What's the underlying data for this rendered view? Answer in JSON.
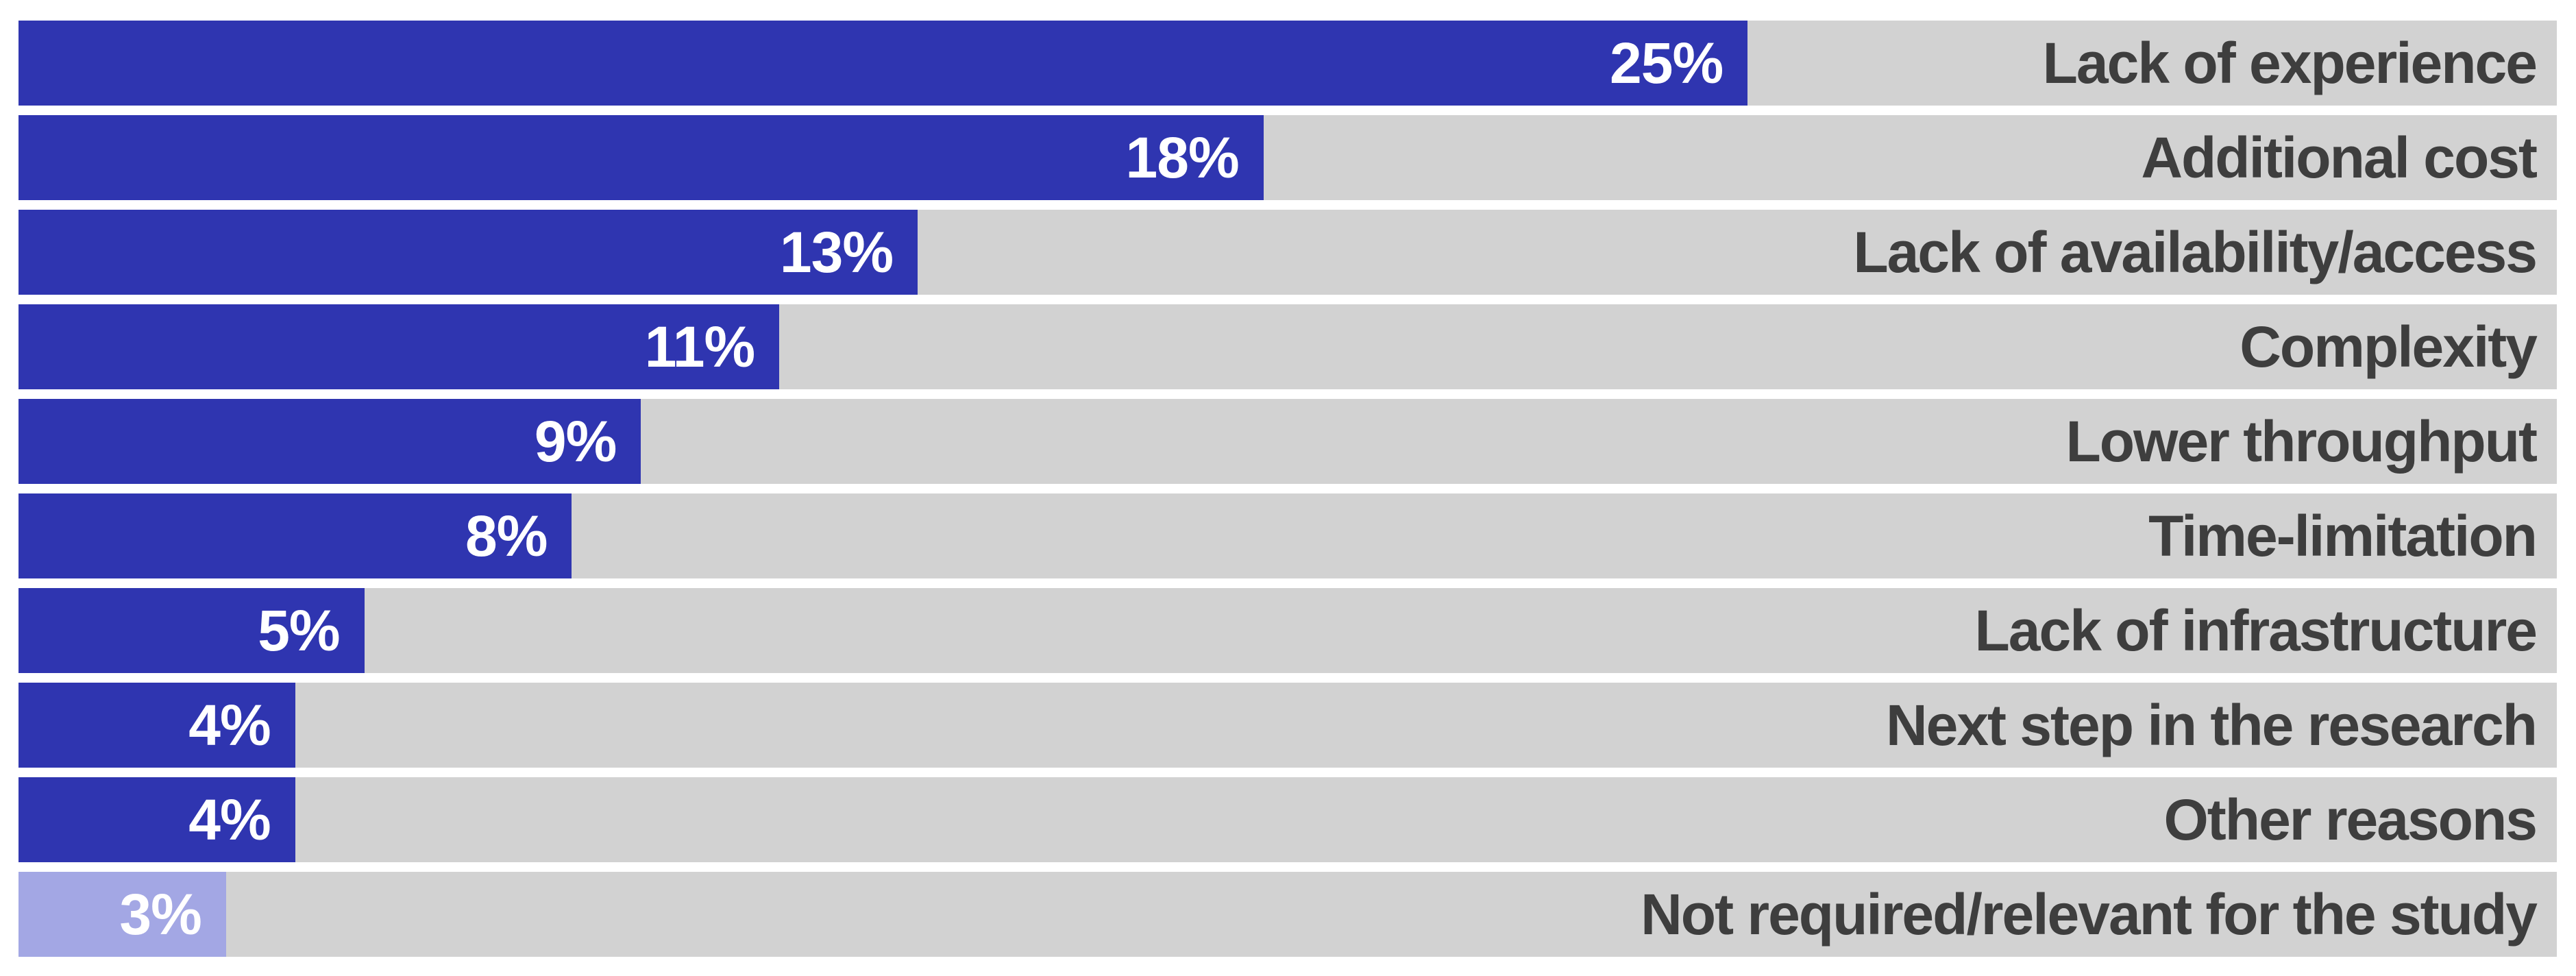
{
  "chart_data": {
    "type": "bar",
    "orientation": "horizontal",
    "title": "",
    "xlabel": "",
    "ylabel": "",
    "xlim": [
      0,
      36.7
    ],
    "grid": false,
    "legend": false,
    "unit": "%",
    "categories": [
      "Lack of experience",
      "Additional cost",
      "Lack of availability/access",
      "Complexity",
      "Lower throughput",
      "Time-limitation",
      "Lack of infrastructure",
      "Next step in the research",
      "Other reasons",
      "Not required/relevant for the study"
    ],
    "values": [
      25,
      18,
      13,
      11,
      9,
      8,
      5,
      4,
      4,
      3
    ],
    "value_labels": [
      "25%",
      "18%",
      "13%",
      "11%",
      "9%",
      "8%",
      "5%",
      "4%",
      "4%",
      "3%"
    ],
    "bar_colors": [
      "#2F35B0",
      "#2F35B0",
      "#2F35B0",
      "#2F35B0",
      "#2F35B0",
      "#2F35B0",
      "#2F35B0",
      "#2F35B0",
      "#2F35B0",
      "#A3A7E4"
    ],
    "layout_hints": {
      "value_label_position": "inside-end",
      "category_label_position": "right-aligned-on-track"
    }
  },
  "colors": {
    "track": "#D2D2D2",
    "value_text": "#FFFFFF",
    "category_text": "#3E3E3E",
    "background": "#FFFFFF",
    "bar_primary": "#2F35B0",
    "bar_muted": "#A3A7E4"
  }
}
